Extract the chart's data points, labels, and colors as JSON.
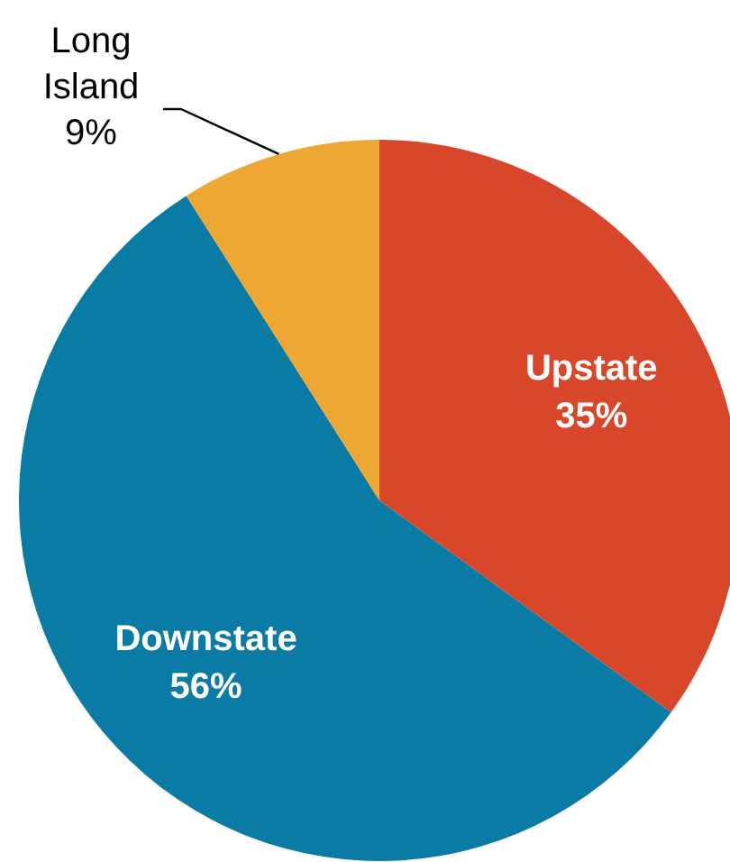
{
  "chart_data": {
    "type": "pie",
    "categories": [
      "Upstate",
      "Downstate",
      "Long Island"
    ],
    "values": [
      35,
      56,
      9
    ],
    "colors": [
      "#d9472b",
      "#0a7ba5",
      "#eea733"
    ],
    "value_labels": [
      "35%",
      "56%",
      "9%"
    ]
  }
}
